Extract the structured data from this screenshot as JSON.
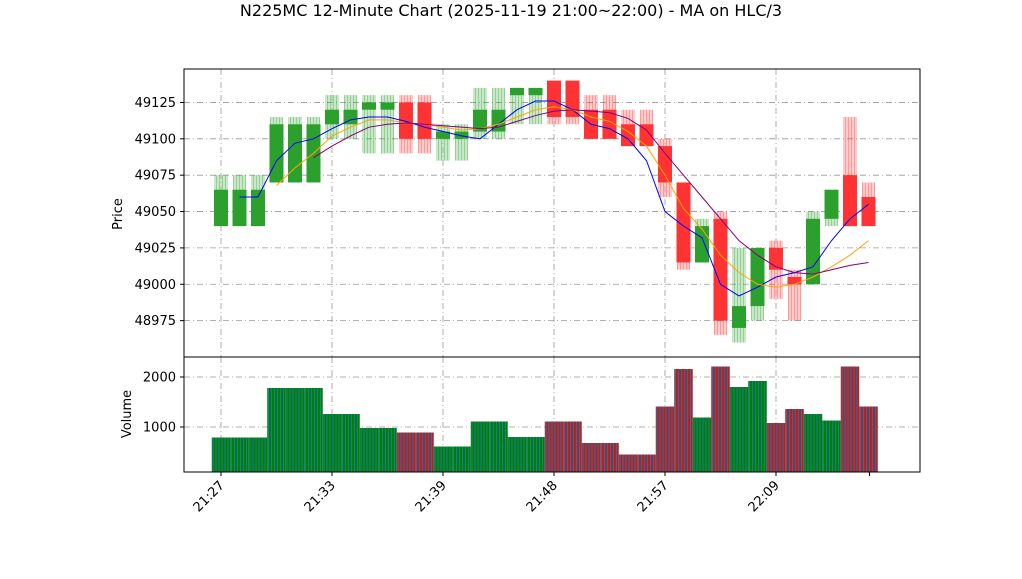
{
  "colors": {
    "up": "#2ca02c",
    "down": "#ff3333",
    "ma_fast": "#0000ff",
    "ma_mid": "#ffa500",
    "ma_slow": "#800080",
    "vol_up": "#008000",
    "vol_down": "#b22222",
    "vol_edge": "#1f77b4",
    "grid": "#999999"
  },
  "chart_data": {
    "type": "candlestick",
    "title": "N225MC 12-Minute Chart (2025-11-19 21:00~22:00) - MA on HLC/3",
    "price_panel": {
      "ylabel": "Price",
      "ylim": [
        48950,
        49148
      ],
      "yticks": [
        48975,
        49000,
        49025,
        49050,
        49075,
        49100,
        49125
      ],
      "grid": true
    },
    "volume_panel": {
      "ylabel": "Volume",
      "ylim": [
        100,
        2400
      ],
      "yticks": [
        1000,
        2000
      ],
      "grid": true
    },
    "x_ticks": [
      {
        "label": "21:27",
        "bar": 0
      },
      {
        "label": "21:33",
        "bar": 6
      },
      {
        "label": "21:39",
        "bar": 12
      },
      {
        "label": "21:48",
        "bar": 18
      },
      {
        "label": "21:57",
        "bar": 24
      },
      {
        "label": "22:09",
        "bar": 30
      }
    ],
    "candles": [
      {
        "bar": 0,
        "open": 49040,
        "high": 49075,
        "low": 49040,
        "close": 49065,
        "volume": 790
      },
      {
        "bar": 1,
        "open": 49040,
        "high": 49075,
        "low": 49040,
        "close": 49065,
        "volume": 790
      },
      {
        "bar": 2,
        "open": 49040,
        "high": 49075,
        "low": 49040,
        "close": 49065,
        "volume": 790
      },
      {
        "bar": 3,
        "open": 49070,
        "high": 49115,
        "low": 49070,
        "close": 49110,
        "volume": 1780
      },
      {
        "bar": 4,
        "open": 49070,
        "high": 49115,
        "low": 49070,
        "close": 49110,
        "volume": 1780
      },
      {
        "bar": 5,
        "open": 49070,
        "high": 49115,
        "low": 49070,
        "close": 49110,
        "volume": 1780
      },
      {
        "bar": 6,
        "open": 49110,
        "high": 49130,
        "low": 49100,
        "close": 49120,
        "volume": 1260
      },
      {
        "bar": 7,
        "open": 49110,
        "high": 49130,
        "low": 49100,
        "close": 49120,
        "volume": 1260
      },
      {
        "bar": 8,
        "open": 49120,
        "high": 49130,
        "low": 49090,
        "close": 49125,
        "volume": 980
      },
      {
        "bar": 9,
        "open": 49120,
        "high": 49130,
        "low": 49090,
        "close": 49125,
        "volume": 980
      },
      {
        "bar": 10,
        "open": 49125,
        "high": 49130,
        "low": 49090,
        "close": 49100,
        "volume": 890
      },
      {
        "bar": 11,
        "open": 49125,
        "high": 49130,
        "low": 49090,
        "close": 49100,
        "volume": 890
      },
      {
        "bar": 12,
        "open": 49100,
        "high": 49110,
        "low": 49085,
        "close": 49105,
        "volume": 610
      },
      {
        "bar": 13,
        "open": 49100,
        "high": 49110,
        "low": 49085,
        "close": 49105,
        "volume": 610
      },
      {
        "bar": 14,
        "open": 49105,
        "high": 49135,
        "low": 49100,
        "close": 49120,
        "volume": 1110
      },
      {
        "bar": 15,
        "open": 49105,
        "high": 49135,
        "low": 49100,
        "close": 49120,
        "volume": 1110
      },
      {
        "bar": 16,
        "open": 49130,
        "high": 49135,
        "low": 49110,
        "close": 49135,
        "volume": 800
      },
      {
        "bar": 17,
        "open": 49130,
        "high": 49135,
        "low": 49110,
        "close": 49135,
        "volume": 800
      },
      {
        "bar": 18,
        "open": 49140,
        "high": 49140,
        "low": 49110,
        "close": 49115,
        "volume": 1110
      },
      {
        "bar": 19,
        "open": 49140,
        "high": 49140,
        "low": 49110,
        "close": 49115,
        "volume": 1110
      },
      {
        "bar": 20,
        "open": 49120,
        "high": 49130,
        "low": 49100,
        "close": 49100,
        "volume": 680
      },
      {
        "bar": 21,
        "open": 49120,
        "high": 49130,
        "low": 49100,
        "close": 49100,
        "volume": 680
      },
      {
        "bar": 22,
        "open": 49110,
        "high": 49120,
        "low": 49095,
        "close": 49095,
        "volume": 450
      },
      {
        "bar": 23,
        "open": 49110,
        "high": 49120,
        "low": 49095,
        "close": 49095,
        "volume": 450
      },
      {
        "bar": 24,
        "open": 49095,
        "high": 49100,
        "low": 49060,
        "close": 49070,
        "volume": 1410
      },
      {
        "bar": 25,
        "open": 49070,
        "high": 49070,
        "low": 49010,
        "close": 49015,
        "volume": 2160
      },
      {
        "bar": 26,
        "open": 49015,
        "high": 49045,
        "low": 49015,
        "close": 49040,
        "volume": 1190
      },
      {
        "bar": 27,
        "open": 49045,
        "high": 49050,
        "low": 48965,
        "close": 48975,
        "volume": 2210
      },
      {
        "bar": 28,
        "open": 48970,
        "high": 49025,
        "low": 48960,
        "close": 48985,
        "volume": 1800
      },
      {
        "bar": 29,
        "open": 48985,
        "high": 49025,
        "low": 48975,
        "close": 49025,
        "volume": 1920
      },
      {
        "bar": 30,
        "open": 49025,
        "high": 49030,
        "low": 48990,
        "close": 49010,
        "volume": 1080
      },
      {
        "bar": 31,
        "open": 49005,
        "high": 49010,
        "low": 48975,
        "close": 49000,
        "volume": 1360
      },
      {
        "bar": 32,
        "open": 49000,
        "high": 49050,
        "low": 49000,
        "close": 49045,
        "volume": 1260
      },
      {
        "bar": 33,
        "open": 49045,
        "high": 49065,
        "low": 49040,
        "close": 49065,
        "volume": 1130
      },
      {
        "bar": 34,
        "open": 49075,
        "high": 49115,
        "low": 49040,
        "close": 49040,
        "volume": 2210
      },
      {
        "bar": 35,
        "open": 49060,
        "high": 49070,
        "low": 49040,
        "close": 49040,
        "volume": 1410
      }
    ],
    "ma_series": [
      {
        "color": "#0000ff",
        "values": [
          null,
          49060,
          49060,
          49085,
          49097,
          49100,
          49107,
          49113,
          49115,
          49115,
          49112,
          49108,
          49105,
          49102,
          49100,
          49110,
          49120,
          49126,
          49126,
          49120,
          49110,
          49107,
          49100,
          49085,
          49050,
          49040,
          49032,
          49000,
          48992,
          48998,
          49005,
          49008,
          49012,
          49030,
          49045,
          49055
        ]
      },
      {
        "color": "#ffa500",
        "values": [
          null,
          null,
          null,
          49068,
          49080,
          49090,
          49102,
          49108,
          49113,
          49113,
          49111,
          49110,
          49108,
          49106,
          49107,
          49110,
          49115,
          49120,
          49122,
          49120,
          49115,
          49112,
          49105,
          49095,
          49075,
          49052,
          49038,
          49020,
          49008,
          49000,
          48998,
          49000,
          49005,
          49012,
          49020,
          49030
        ]
      },
      {
        "color": "#800080",
        "values": [
          null,
          null,
          null,
          null,
          null,
          49087,
          49095,
          49102,
          49108,
          49110,
          49111,
          49110,
          49109,
          49108,
          49107,
          49108,
          49112,
          49116,
          49119,
          49120,
          49119,
          49118,
          49114,
          49106,
          49090,
          49075,
          49060,
          49045,
          49030,
          49020,
          49012,
          49008,
          49007,
          49010,
          49013,
          49015
        ]
      }
    ]
  }
}
